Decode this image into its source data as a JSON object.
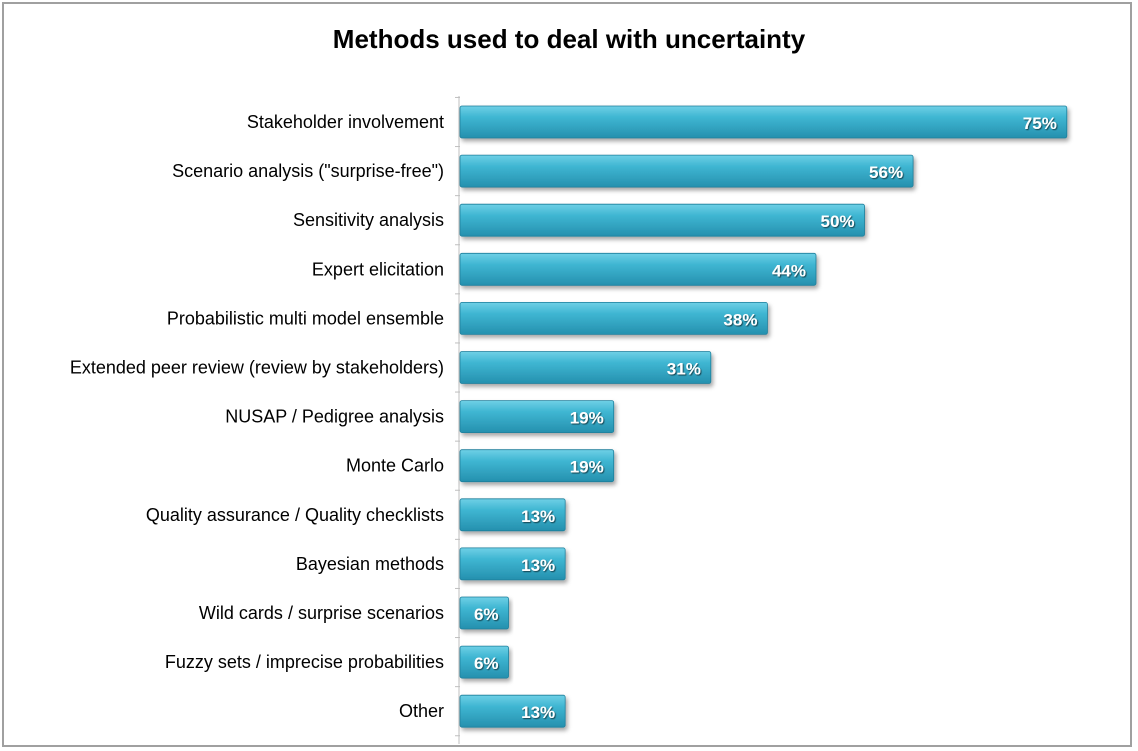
{
  "chart_data": {
    "type": "bar",
    "orientation": "horizontal",
    "title": "Methods used to deal with uncertainty",
    "categories": [
      "Stakeholder involvement",
      "Scenario analysis (\"surprise-free\")",
      "Sensitivity analysis",
      "Expert elicitation",
      "Probabilistic multi model ensemble",
      "Extended peer review (review by stakeholders)",
      "NUSAP / Pedigree analysis",
      "Monte Carlo",
      "Quality assurance / Quality checklists",
      "Bayesian methods",
      "Wild cards / surprise scenarios",
      "Fuzzy sets / imprecise probabilities",
      "Other"
    ],
    "values": [
      75,
      56,
      50,
      44,
      38,
      31,
      19,
      19,
      13,
      13,
      6,
      6,
      13
    ],
    "value_labels": [
      "75%",
      "56%",
      "50%",
      "44%",
      "38%",
      "31%",
      "19%",
      "19%",
      "13%",
      "13%",
      "6%",
      "6%",
      "13%"
    ],
    "unit": "%",
    "xlim": [
      0,
      77
    ],
    "grid": false,
    "legend": "none",
    "bar_color": "#3AAFCB"
  }
}
